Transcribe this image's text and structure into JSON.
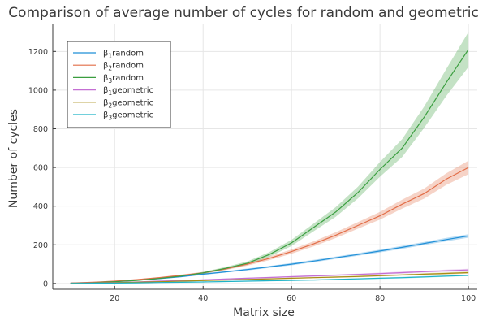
{
  "chart_data": {
    "type": "line",
    "title": "Comparison of average number of cycles for random and geometric",
    "xlabel": "Matrix size",
    "ylabel": "Number of cycles",
    "xlim": [
      6,
      102
    ],
    "ylim": [
      -30,
      1340
    ],
    "xticks": [
      20,
      40,
      60,
      80,
      100
    ],
    "yticks": [
      0,
      200,
      400,
      600,
      800,
      1000,
      1200
    ],
    "grid": true,
    "legend_position": "top-left",
    "x": [
      10,
      15,
      20,
      25,
      30,
      35,
      40,
      45,
      50,
      55,
      60,
      65,
      70,
      75,
      80,
      85,
      90,
      95,
      100
    ],
    "series": [
      {
        "name": "β1 random",
        "base": "β",
        "sub": "1",
        "label": "random",
        "color": "#1f8fd8",
        "values": [
          2,
          5,
          10,
          17,
          25,
          35,
          48,
          60,
          72,
          86,
          100,
          116,
          133,
          150,
          168,
          187,
          207,
          227,
          246
        ],
        "band": [
          1,
          1,
          2,
          2,
          3,
          3,
          4,
          4,
          5,
          5,
          6,
          6,
          6,
          7,
          7,
          8,
          8,
          9,
          9
        ]
      },
      {
        "name": "β2 random",
        "base": "β",
        "sub": "2",
        "label": "random",
        "color": "#e26d47",
        "values": [
          2,
          6,
          12,
          20,
          30,
          42,
          55,
          75,
          100,
          130,
          165,
          205,
          250,
          300,
          350,
          410,
          465,
          540,
          600
        ],
        "band": [
          1,
          1,
          2,
          2,
          3,
          4,
          5,
          6,
          8,
          9,
          11,
          13,
          15,
          17,
          20,
          23,
          26,
          30,
          35
        ]
      },
      {
        "name": "β3 random",
        "base": "β",
        "sub": "3",
        "label": "random",
        "color": "#3a9e3f",
        "values": [
          1,
          4,
          9,
          16,
          26,
          38,
          55,
          78,
          105,
          150,
          210,
          290,
          370,
          470,
          590,
          700,
          860,
          1040,
          1210
        ],
        "band": [
          1,
          1,
          2,
          2,
          3,
          4,
          5,
          7,
          9,
          12,
          16,
          20,
          25,
          30,
          38,
          46,
          55,
          70,
          90
        ]
      },
      {
        "name": "β1 geometric",
        "base": "β",
        "sub": "1",
        "label": "geometric",
        "color": "#c46fd3",
        "values": [
          1,
          3,
          5,
          8,
          12,
          15,
          19,
          23,
          27,
          31,
          35,
          39,
          43,
          47,
          51,
          56,
          61,
          66,
          70
        ],
        "band": [
          1,
          1,
          1,
          1,
          2,
          2,
          2,
          3,
          3,
          3,
          3,
          4,
          4,
          4,
          5,
          5,
          5,
          6,
          6
        ]
      },
      {
        "name": "β2 geometric",
        "base": "β",
        "sub": "2",
        "label": "geometric",
        "color": "#a98d14",
        "values": [
          1,
          2,
          4,
          6,
          9,
          12,
          15,
          18,
          21,
          24,
          27,
          30,
          33,
          36,
          40,
          44,
          48,
          52,
          56
        ],
        "band": [
          1,
          1,
          1,
          1,
          1,
          2,
          2,
          2,
          2,
          3,
          3,
          3,
          3,
          4,
          4,
          4,
          5,
          5,
          5
        ]
      },
      {
        "name": "β3 geometric",
        "base": "β",
        "sub": "3",
        "label": "geometric",
        "color": "#1fb3c7",
        "values": [
          0,
          1,
          2,
          3,
          5,
          6,
          8,
          10,
          12,
          14,
          16,
          18,
          21,
          24,
          27,
          30,
          34,
          38,
          42
        ],
        "band": [
          1,
          1,
          1,
          1,
          1,
          1,
          2,
          2,
          2,
          2,
          2,
          3,
          3,
          3,
          3,
          4,
          4,
          4,
          4
        ]
      }
    ]
  }
}
